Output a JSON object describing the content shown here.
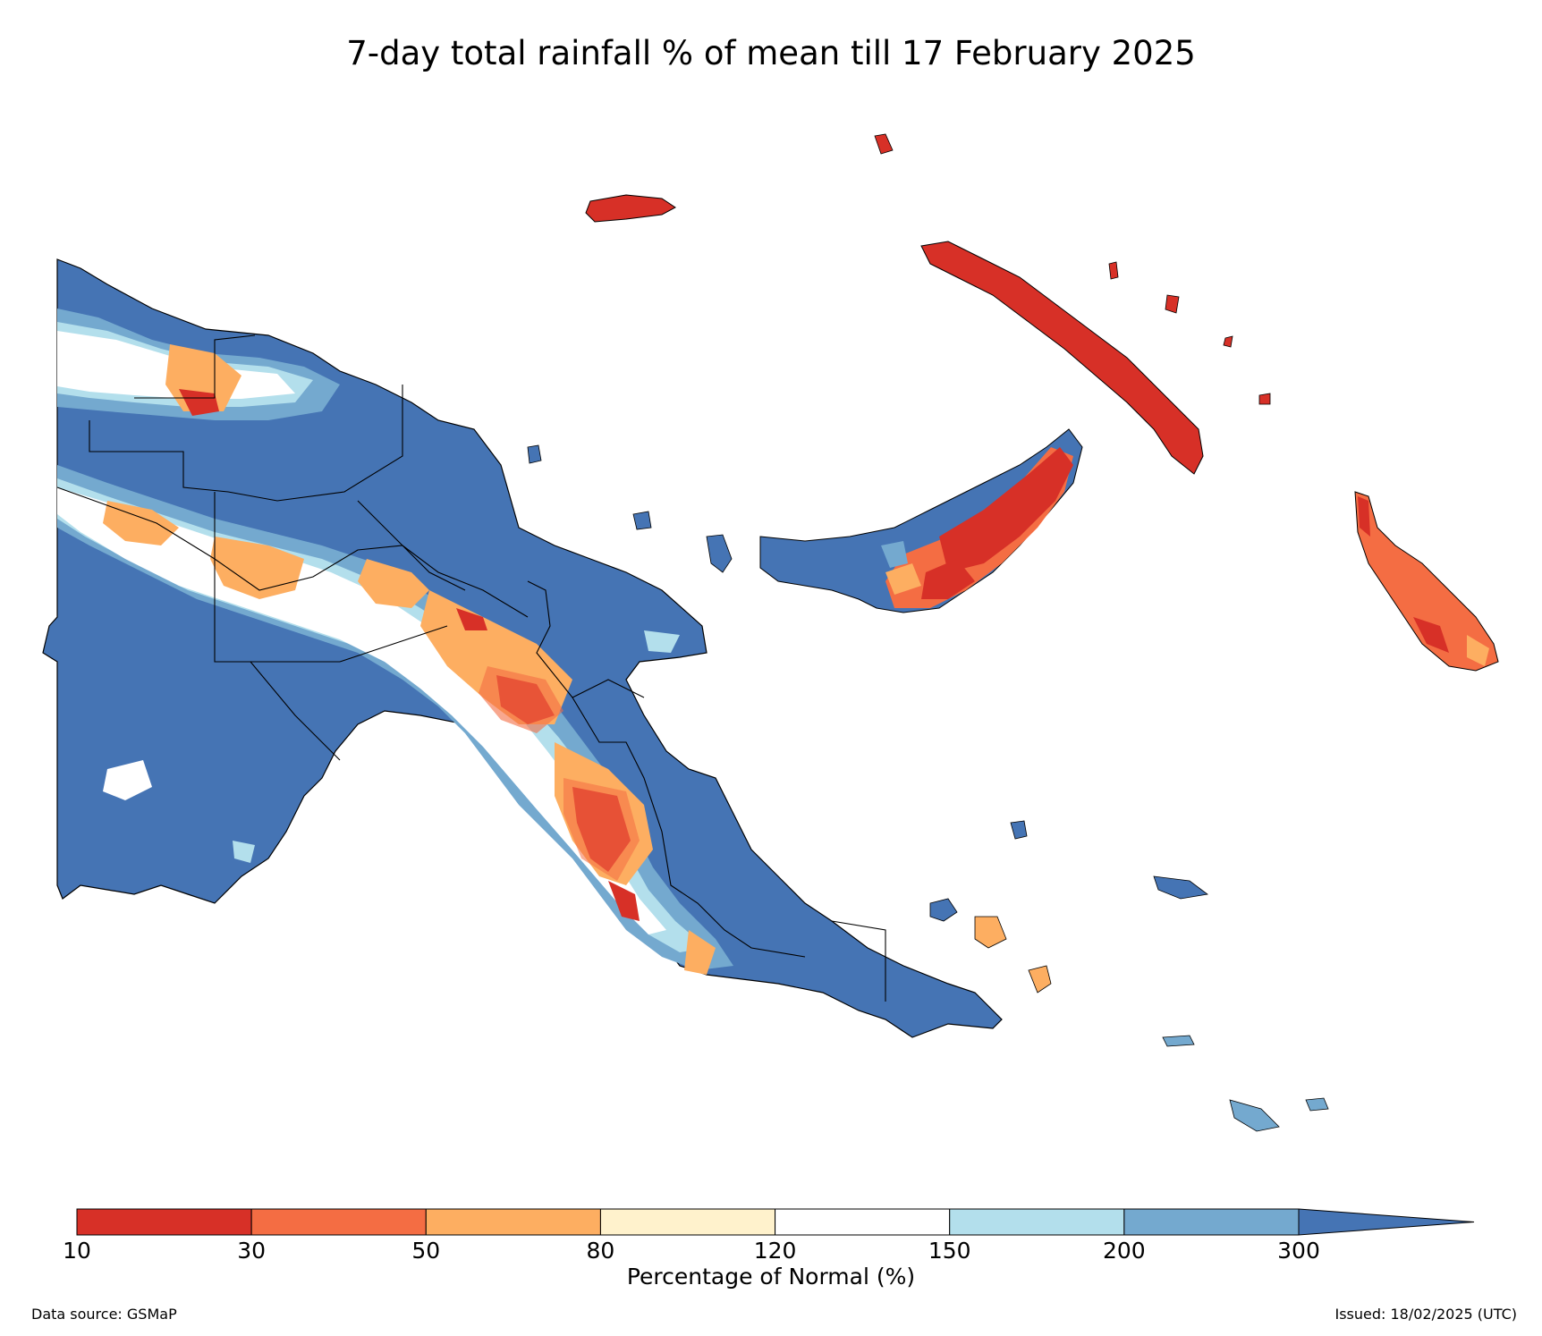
{
  "title": "7-day total rainfall % of mean till 17 February 2025",
  "colorbar": {
    "label": "Percentage of Normal (%)",
    "ticks": [
      "10",
      "30",
      "50",
      "80",
      "120",
      "150",
      "200",
      "300"
    ],
    "colors": [
      "#d73027",
      "#f46d43",
      "#fdae61",
      "#fff2cc",
      "#ffffff",
      "#b3dfec",
      "#74a9cf",
      "#4574b4"
    ],
    "extend": "max"
  },
  "footer": {
    "source": "Data source: GSMaP",
    "issued": "Issued: 18/02/2025 (UTC)"
  },
  "legend_colors": {
    "very_dry": "#d73027",
    "dry": "#f46d43",
    "mod_dry": "#fdae61",
    "slight_dry": "#fff2cc",
    "normal": "#ffffff",
    "slight_wet": "#b3dfec",
    "wet": "#74a9cf",
    "very_wet": "#4574b4"
  }
}
